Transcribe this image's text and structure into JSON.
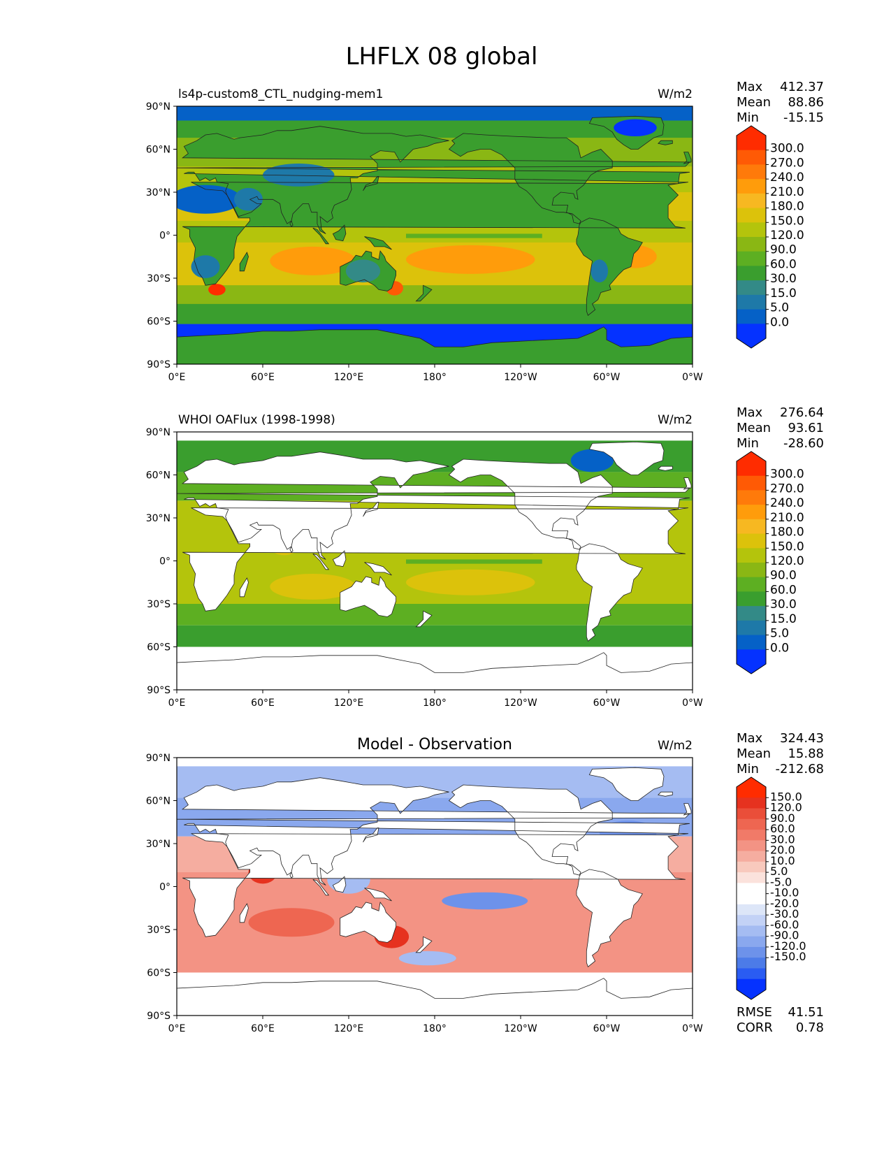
{
  "title": "LHFLX 08 global",
  "lat_ticks": [
    "90°N",
    "60°N",
    "30°N",
    "0°",
    "30°S",
    "60°S",
    "90°S"
  ],
  "lon_ticks": [
    "0°E",
    "60°E",
    "120°E",
    "180°",
    "120°W",
    "60°W",
    "0°W"
  ],
  "colors": {
    "seq": [
      "#0532ff",
      "#0561c7",
      "#1e79a8",
      "#338a87",
      "#3a9e2e",
      "#5daf22",
      "#8ab714",
      "#b4c40c",
      "#dcc20b",
      "#f7b821",
      "#ff9c0b",
      "#ff7a0a",
      "#ff5a05",
      "#ff2c00"
    ],
    "div": [
      "#0532ff",
      "#2a5cf2",
      "#4c7be8",
      "#6d92ea",
      "#8aa8ee",
      "#a5bcf2",
      "#c3d2f6",
      "#dde6f8",
      "#ffffff",
      "#ffffff",
      "#fbe2dc",
      "#f8c9bd",
      "#f5ada0",
      "#f39384",
      "#f17a68",
      "#ee6651",
      "#ea4e39",
      "#e6321f",
      "#ff2c00"
    ]
  },
  "panels": [
    {
      "id": "model",
      "title": "ls4p-custom8_CTL_nudging-mem1",
      "center_title": "",
      "units": "W/m2",
      "stats": [
        {
          "label": "Max",
          "value": "412.37"
        },
        {
          "label": "Mean",
          "value": "88.86"
        },
        {
          "label": "Min",
          "value": "-15.15"
        }
      ],
      "colorbar_type": "seq",
      "levels": [
        "300.0",
        "270.0",
        "240.0",
        "210.0",
        "180.0",
        "150.0",
        "120.0",
        "90.0",
        "60.0",
        "30.0",
        "15.0",
        "5.0",
        "0.0"
      ],
      "footer": []
    },
    {
      "id": "obs",
      "title": "WHOI OAFlux (1998-1998)",
      "center_title": "",
      "units": "W/m2",
      "stats": [
        {
          "label": "Max",
          "value": "276.64"
        },
        {
          "label": "Mean",
          "value": "93.61"
        },
        {
          "label": "Min",
          "value": "-28.60"
        }
      ],
      "colorbar_type": "seq",
      "levels": [
        "300.0",
        "270.0",
        "240.0",
        "210.0",
        "180.0",
        "150.0",
        "120.0",
        "90.0",
        "60.0",
        "30.0",
        "15.0",
        "5.0",
        "0.0"
      ],
      "footer": []
    },
    {
      "id": "diff",
      "title": "",
      "center_title": "Model - Observation",
      "units": "W/m2",
      "stats": [
        {
          "label": "Max",
          "value": "324.43"
        },
        {
          "label": "Mean",
          "value": "15.88"
        },
        {
          "label": "Min",
          "value": "-212.68"
        }
      ],
      "colorbar_type": "div",
      "levels": [
        "150.0",
        "120.0",
        "90.0",
        "60.0",
        "30.0",
        "20.0",
        "10.0",
        "5.0",
        "-5.0",
        "-10.0",
        "-20.0",
        "-30.0",
        "-60.0",
        "-90.0",
        "-120.0",
        "-150.0"
      ],
      "footer": [
        {
          "label": "RMSE",
          "value": "41.51"
        },
        {
          "label": "CORR",
          "value": "0.78"
        }
      ]
    }
  ]
}
